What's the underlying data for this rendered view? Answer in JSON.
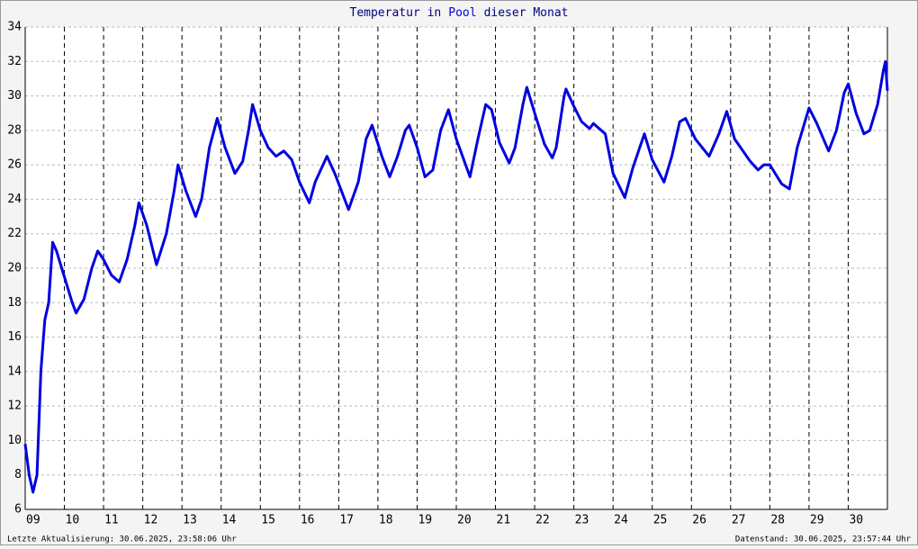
{
  "chart_data": {
    "type": "line",
    "title": {
      "part1": "Temperatur in",
      "part2": "Pool",
      "part3": "dieser Monat"
    },
    "footer_left": "Letzte Aktualisierung: 30.06.2025, 23:58:06 Uhr",
    "footer_right": "Datenstand: 30.06.2025, 23:57:44 Uhr",
    "xlim": [
      9,
      31
    ],
    "xticks": [
      {
        "value": 9,
        "label": "09"
      },
      10,
      11,
      12,
      13,
      14,
      15,
      16,
      17,
      18,
      19,
      20,
      21,
      22,
      23,
      24,
      25,
      26,
      27,
      28,
      29,
      30
    ],
    "ylim": [
      6,
      34
    ],
    "yticks": [
      6,
      8,
      10,
      12,
      14,
      16,
      18,
      20,
      22,
      24,
      26,
      28,
      30,
      32,
      34
    ],
    "grid": true,
    "x": [
      9.0,
      9.1,
      9.2,
      9.3,
      9.4,
      9.5,
      9.6,
      9.7,
      9.8,
      10.0,
      10.2,
      10.3,
      10.5,
      10.7,
      10.85,
      11.0,
      11.2,
      11.4,
      11.6,
      11.8,
      11.9,
      12.1,
      12.35,
      12.6,
      12.8,
      12.9,
      13.1,
      13.35,
      13.5,
      13.7,
      13.9,
      14.1,
      14.35,
      14.55,
      14.7,
      14.8,
      15.0,
      15.2,
      15.4,
      15.6,
      15.8,
      16.0,
      16.25,
      16.4,
      16.7,
      16.9,
      17.25,
      17.5,
      17.7,
      17.85,
      18.1,
      18.3,
      18.5,
      18.7,
      18.8,
      19.0,
      19.2,
      19.4,
      19.6,
      19.8,
      20.0,
      20.35,
      20.55,
      20.75,
      20.9,
      21.1,
      21.35,
      21.5,
      21.7,
      21.8,
      22.0,
      22.25,
      22.45,
      22.55,
      22.75,
      22.8,
      23.0,
      23.2,
      23.4,
      23.5,
      23.7,
      23.8,
      24.0,
      24.3,
      24.5,
      24.8,
      25.0,
      25.3,
      25.5,
      25.7,
      25.85,
      26.1,
      26.45,
      26.7,
      26.9,
      27.1,
      27.5,
      27.7,
      27.85,
      28.0,
      28.3,
      28.5,
      28.7,
      29.0,
      29.2,
      29.5,
      29.7,
      29.9,
      30.0,
      30.2,
      30.4,
      30.55,
      30.75,
      30.9,
      30.95,
      31.0
    ],
    "series": [
      {
        "color": "#0000e0",
        "values": [
          9.8,
          8,
          7.0,
          8,
          14,
          17,
          18,
          21.5,
          21,
          19.5,
          18,
          17.4,
          18.2,
          20,
          21,
          20.5,
          19.6,
          19.2,
          20.5,
          22.5,
          23.8,
          22.5,
          20.2,
          22,
          24.5,
          26,
          24.5,
          23,
          24,
          27,
          28.7,
          27,
          25.5,
          26.2,
          28,
          29.5,
          28,
          27,
          26.5,
          26.8,
          26.3,
          25,
          23.8,
          25,
          26.5,
          25.5,
          23.4,
          25,
          27.5,
          28.3,
          26.5,
          25.3,
          26.5,
          28,
          28.3,
          27,
          25.3,
          25.7,
          28,
          29.2,
          27.5,
          25.3,
          27.5,
          29.5,
          29.2,
          27.3,
          26.1,
          27,
          29.5,
          30.5,
          29,
          27.2,
          26.4,
          27,
          30,
          30.4,
          29.4,
          28.5,
          28.1,
          28.4,
          28,
          27.8,
          25.5,
          24.1,
          25.8,
          27.8,
          26.3,
          25,
          26.5,
          28.5,
          28.7,
          27.5,
          26.5,
          27.8,
          29.1,
          27.5,
          26.2,
          25.7,
          26.0,
          26.0,
          24.9,
          24.6,
          27,
          29.3,
          28.4,
          26.8,
          28,
          30.2,
          30.7,
          29,
          27.8,
          28,
          29.5,
          31.5,
          32,
          30.3
        ]
      }
    ]
  }
}
